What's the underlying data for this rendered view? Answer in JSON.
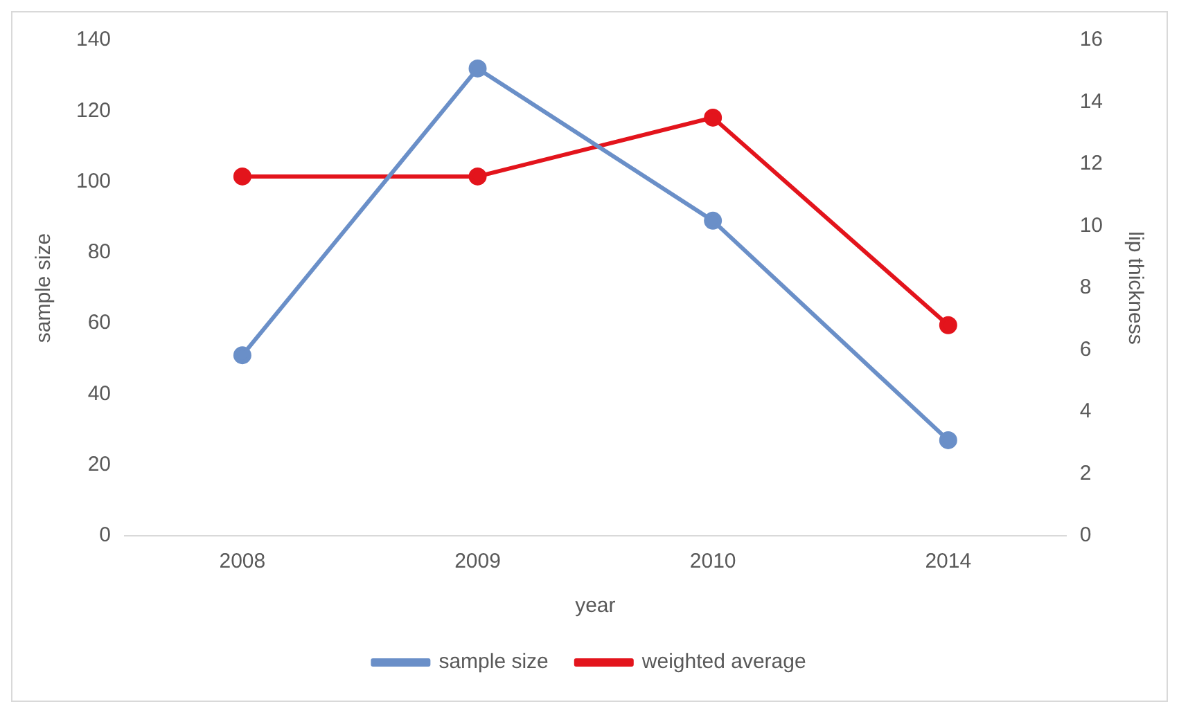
{
  "chart_data": {
    "type": "line",
    "xlabel": "year",
    "ylabel": "sample size",
    "y2label": "lip thickness",
    "categories": [
      "2008",
      "2009",
      "2010",
      "2014"
    ],
    "series": [
      {
        "name": "sample size",
        "color": "#6a8fc8",
        "values": [
          51,
          132,
          89,
          27
        ]
      },
      {
        "name": "weighted average",
        "color": "#e3141c",
        "values": [
          11.6,
          11.6,
          13.5,
          6.8
        ],
        "axis": "y2"
      }
    ],
    "ylim": [
      0,
      140
    ],
    "yticks": [
      0,
      20,
      40,
      60,
      80,
      100,
      120,
      140
    ],
    "y2lim": [
      0,
      16
    ],
    "y2ticks": [
      0,
      2,
      4,
      6,
      8,
      10,
      12,
      14,
      16
    ],
    "grid": false,
    "legend": "bottom",
    "marker": "circle",
    "line_style": "solid"
  }
}
